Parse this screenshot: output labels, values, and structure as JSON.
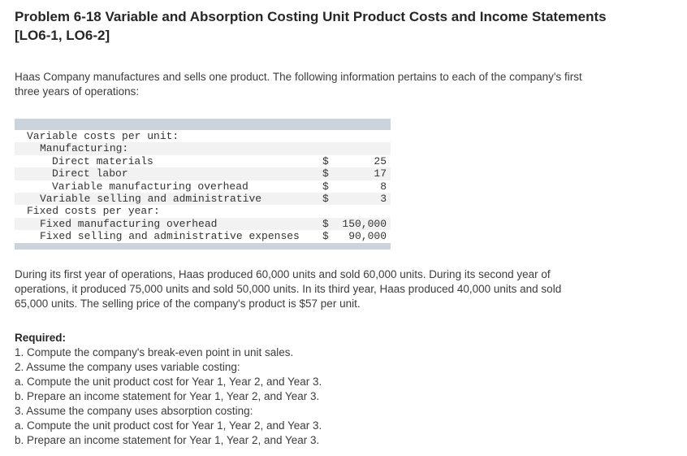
{
  "title": {
    "main": "Problem 6-18 Variable and Absorption Costing Unit Product Costs and Income Statements",
    "tags": "[LO6-1, LO6-2]"
  },
  "intro": {
    "lines": [
      "Haas Company manufactures and sells one product. The following information pertains to each of the company's first",
      "three years of operations:"
    ]
  },
  "cost_table": {
    "rows": [
      {
        "label": "Variable costs per unit:",
        "currency": "",
        "amount": ""
      },
      {
        "label": "Manufacturing:",
        "currency": "",
        "amount": ""
      },
      {
        "label": "Direct materials",
        "currency": "$",
        "amount": "25"
      },
      {
        "label": "Direct labor",
        "currency": "$",
        "amount": "17"
      },
      {
        "label": "Variable manufacturing overhead",
        "currency": "$",
        "amount": "8"
      },
      {
        "label": "Variable selling and administrative",
        "currency": "$",
        "amount": "3"
      },
      {
        "label": "Fixed costs per year:",
        "currency": "",
        "amount": ""
      },
      {
        "label": "Fixed manufacturing overhead",
        "currency": "$",
        "amount": "150,000"
      },
      {
        "label": "Fixed selling and administrative expenses",
        "currency": "$",
        "amount": "90,000"
      }
    ]
  },
  "operations": {
    "lines": [
      "During its first year of operations, Haas produced 60,000 units and sold 60,000 units. During its second year of",
      "operations, it produced 75,000 units and sold 50,000 units. In its third year, Haas produced 40,000 units and sold",
      "65,000 units. The selling price of the company's product is $57 per unit."
    ]
  },
  "required": {
    "heading": "Required:",
    "items": [
      "1. Compute the company's break-even point in unit sales.",
      "2. Assume the company uses variable costing:",
      "a. Compute the unit product cost for Year 1, Year 2, and Year 3.",
      "b. Prepare an income statement for Year 1, Year 2, and Year 3.",
      "3. Assume the company uses absorption costing:",
      "a. Compute the unit product cost for Year 1, Year 2, and Year 3.",
      "b. Prepare an income statement for Year 1, Year 2, and Year 3."
    ]
  },
  "colors": {
    "table_bar": "#cdd3dd",
    "table_alt_row": "#f2f2f2",
    "body_text": "#3c3c3c",
    "title_text": "#262626"
  }
}
